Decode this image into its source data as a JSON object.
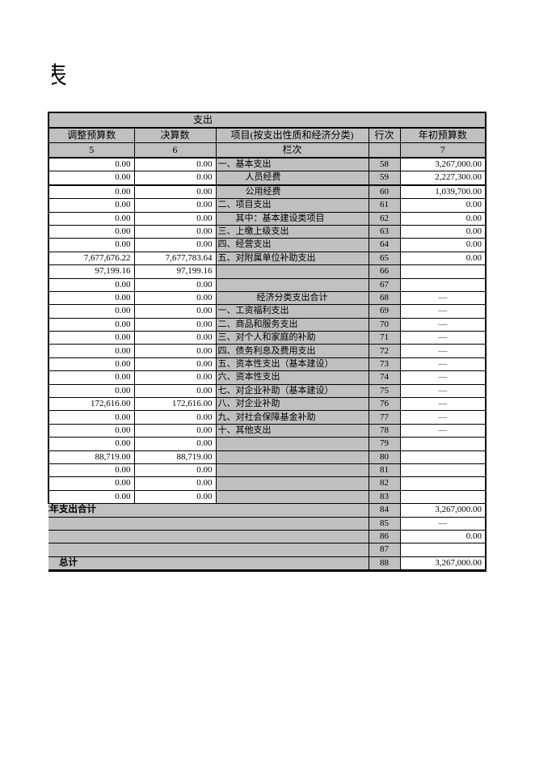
{
  "page": {
    "title_fragment": "表"
  },
  "colors": {
    "cell_gray": "#c0c0c0",
    "page_background": "#ffffff",
    "border": "#000000"
  },
  "table": {
    "section_header": "支出",
    "columns": [
      "调整预算数",
      "决算数",
      "项目(按支出性质和经济分类)",
      "行次",
      "年初预算数"
    ],
    "index_row": [
      "5",
      "6",
      "栏次",
      "",
      "7"
    ],
    "rows": [
      {
        "c5": "0.00",
        "c6": "0.00",
        "item": "一、基本支出",
        "ind": "l0",
        "line": "58",
        "c7": "3,267,000.00"
      },
      {
        "c5": "0.00",
        "c6": "0.00",
        "item": "人员经费",
        "ind": "l2",
        "line": "59",
        "c7": "2,227,300.00",
        "thick": true
      },
      {
        "c5": "0.00",
        "c6": "0.00",
        "item": "公用经费",
        "ind": "l2",
        "line": "60",
        "c7": "1,039,700.00"
      },
      {
        "c5": "0.00",
        "c6": "0.00",
        "item": "二、项目支出",
        "ind": "l0",
        "line": "61",
        "c7": "0.00"
      },
      {
        "c5": "0.00",
        "c6": "0.00",
        "item": "其中：基本建设类项目",
        "ind": "l1",
        "line": "62",
        "c7": "0.00"
      },
      {
        "c5": "0.00",
        "c6": "0.00",
        "item": "三、上缴上级支出",
        "ind": "l0",
        "line": "63",
        "c7": "0.00"
      },
      {
        "c5": "0.00",
        "c6": "0.00",
        "item": "四、经营支出",
        "ind": "l0",
        "line": "64",
        "c7": "0.00"
      },
      {
        "c5": "7,677,676.22",
        "c6": "7,677,783.64",
        "item": "五、对附属单位补助支出",
        "ind": "l0",
        "line": "65",
        "c7": "0.00"
      },
      {
        "c5": "97,199.16",
        "c6": "97,199.16",
        "item": "",
        "ind": "l0",
        "line": "66",
        "c7": ""
      },
      {
        "c5": "0.00",
        "c6": "0.00",
        "item": "",
        "ind": "l0",
        "line": "67",
        "c7": ""
      },
      {
        "c5": "0.00",
        "c6": "0.00",
        "item": "经济分类支出合计",
        "ind": "ctr",
        "line": "68",
        "c7": "—"
      },
      {
        "c5": "0.00",
        "c6": "0.00",
        "item": "一、工资福利支出",
        "ind": "l0",
        "line": "69",
        "c7": "—"
      },
      {
        "c5": "0.00",
        "c6": "0.00",
        "item": "二、商品和服务支出",
        "ind": "l0",
        "line": "70",
        "c7": "—"
      },
      {
        "c5": "0.00",
        "c6": "0.00",
        "item": "三、对个人和家庭的补助",
        "ind": "l0",
        "line": "71",
        "c7": "—"
      },
      {
        "c5": "0.00",
        "c6": "0.00",
        "item": "四、债务利息及费用支出",
        "ind": "l0",
        "line": "72",
        "c7": "—"
      },
      {
        "c5": "0.00",
        "c6": "0.00",
        "item": "五、资本性支出（基本建设）",
        "ind": "l0",
        "line": "73",
        "c7": "—"
      },
      {
        "c5": "0.00",
        "c6": "0.00",
        "item": "六、资本性支出",
        "ind": "l0",
        "line": "74",
        "c7": "—"
      },
      {
        "c5": "0.00",
        "c6": "0.00",
        "item": "七、对企业补助（基本建设）",
        "ind": "l0",
        "line": "75",
        "c7": "—"
      },
      {
        "c5": "172,616.00",
        "c6": "172,616.00",
        "item": "八、对企业补助",
        "ind": "l0",
        "line": "76",
        "c7": "—"
      },
      {
        "c5": "0.00",
        "c6": "0.00",
        "item": "九、对社会保障基金补助",
        "ind": "l0",
        "line": "77",
        "c7": "—"
      },
      {
        "c5": "0.00",
        "c6": "0.00",
        "item": "十、其他支出",
        "ind": "l0",
        "line": "78",
        "c7": "—"
      },
      {
        "c5": "0.00",
        "c6": "0.00",
        "item": "",
        "ind": "l0",
        "line": "79",
        "c7": ""
      },
      {
        "c5": "88,719.00",
        "c6": "88,719.00",
        "item": "",
        "ind": "l0",
        "line": "80",
        "c7": ""
      },
      {
        "c5": "0.00",
        "c6": "0.00",
        "item": "",
        "ind": "l0",
        "line": "81",
        "c7": ""
      },
      {
        "c5": "0.00",
        "c6": "0.00",
        "item": "",
        "ind": "l0",
        "line": "82",
        "c7": ""
      },
      {
        "c5": "0.00",
        "c6": "0.00",
        "item": "",
        "ind": "l0",
        "line": "83",
        "c7": ""
      }
    ],
    "footer_rows": [
      {
        "label": "本年支出合计",
        "clip": true,
        "line": "84",
        "c7": "3,267,000.00"
      },
      {
        "label": "",
        "line": "85",
        "c7": "—"
      },
      {
        "label": "",
        "line": "86",
        "c7": "0.00"
      },
      {
        "label": "",
        "line": "87",
        "c7": ""
      },
      {
        "label": "总计",
        "line": "88",
        "c7": "3,267,000.00"
      }
    ]
  }
}
